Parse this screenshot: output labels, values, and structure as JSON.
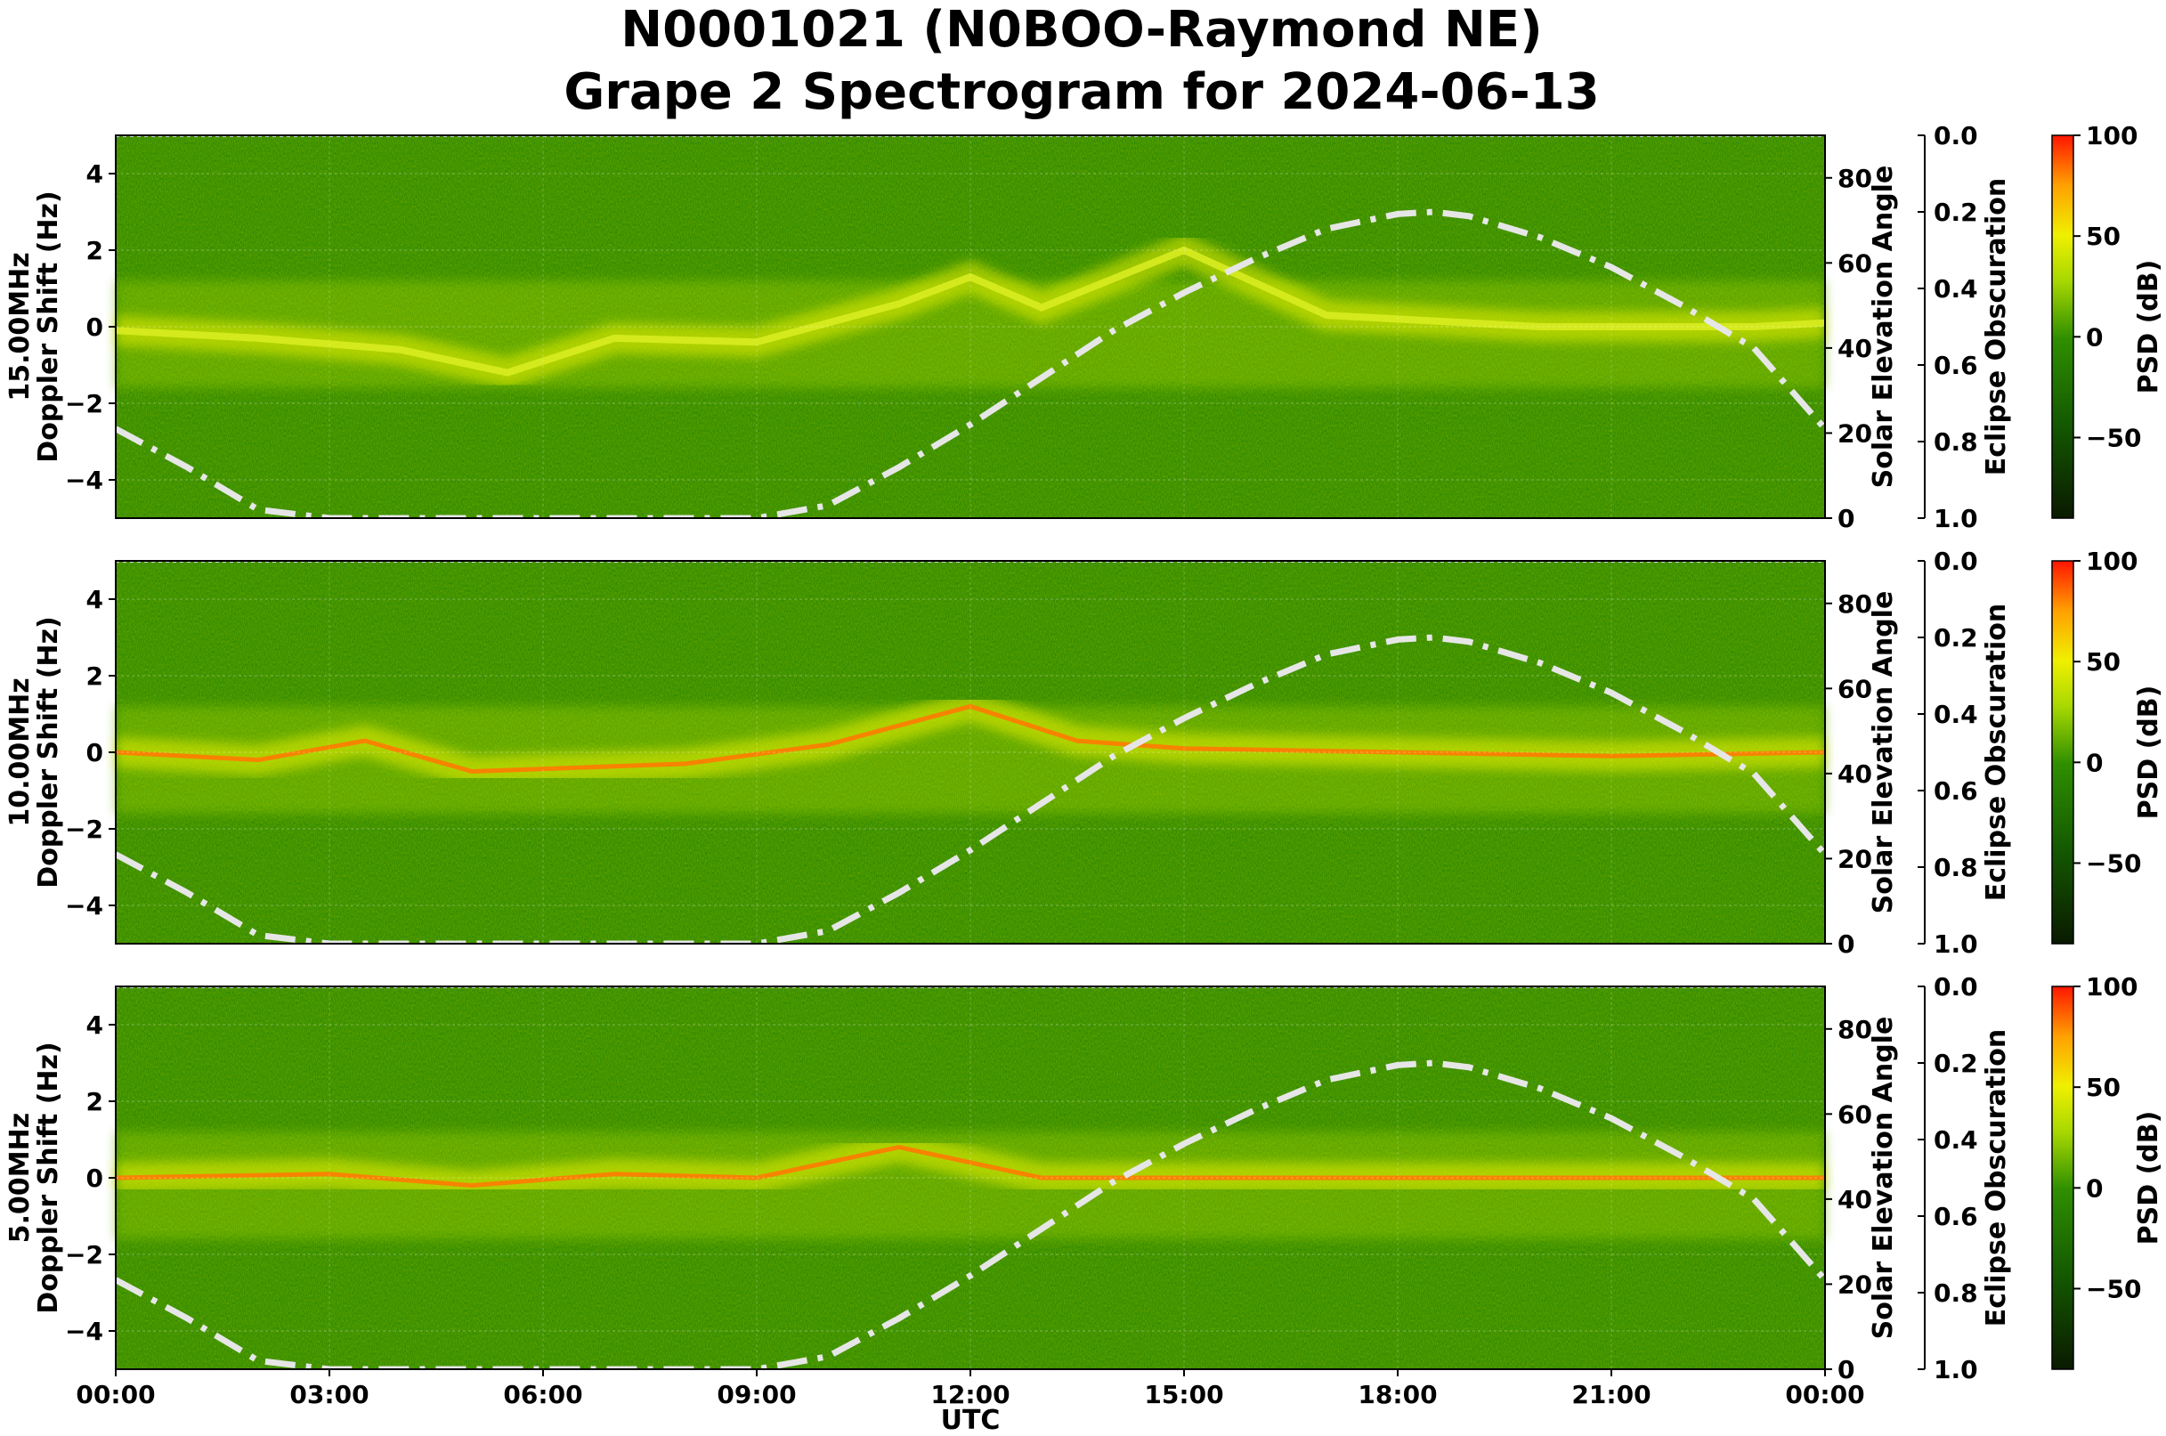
{
  "title_line1": "N0001021 (N0BOO-Raymond NE)",
  "title_line2": "Grape 2 Spectrogram for 2024-06-13",
  "chart_data": {
    "type": "heatmap",
    "xlabel": "UTC",
    "xticks": [
      "00:00",
      "03:00",
      "06:00",
      "09:00",
      "12:00",
      "15:00",
      "18:00",
      "21:00",
      "00:00"
    ],
    "xlim_hours": [
      0,
      24
    ],
    "ylabel": "Doppler Shift (Hz)",
    "ylim": [
      -5,
      5
    ],
    "yticks": [
      4,
      2,
      0,
      -2,
      -4
    ],
    "right_axis_label": "Solar Elevation Angle",
    "right_ylim": [
      0,
      90
    ],
    "right_yticks": [
      80,
      60,
      40,
      20,
      0
    ],
    "eclipse_axis_label": "Eclipse Obscuration",
    "eclipse_ylim": [
      0.0,
      1.0
    ],
    "eclipse_ticks": [
      "0.0",
      "0.2",
      "0.4",
      "0.6",
      "0.8",
      "1.0"
    ],
    "colorbar_label": "PSD (dB)",
    "colorbar_range": [
      -90,
      100
    ],
    "colorbar_ticks": [
      "100",
      "50",
      "0",
      "−50"
    ],
    "colors": {
      "low": "#0a1a00",
      "green": "#1f7a00",
      "mid": "#3c9a00",
      "yellow": "#e8e800",
      "orange": "#ff9a00",
      "red": "#ff1a00"
    },
    "solar_elevation_curve": {
      "hours": [
        0,
        1,
        2,
        3,
        9,
        10,
        11,
        12,
        13,
        14,
        15,
        16,
        17,
        18,
        18.5,
        19,
        20,
        21,
        22,
        23,
        24
      ],
      "degrees": [
        21,
        12,
        2,
        0,
        0,
        3,
        12,
        22,
        33,
        44,
        53,
        61,
        68,
        71.5,
        72,
        71,
        66,
        59,
        50,
        40,
        21
      ]
    },
    "panels": [
      {
        "name": "15.00MHz",
        "ylabel_freq": "15.00MHz",
        "doppler_trace_hours": [
          0,
          2,
          4,
          5.5,
          7,
          9,
          11,
          12,
          13,
          15,
          17,
          20,
          23,
          24
        ],
        "doppler_trace_hz": [
          -0.1,
          -0.3,
          -0.6,
          -1.2,
          -0.3,
          -0.4,
          0.6,
          1.3,
          0.5,
          2.0,
          0.3,
          0.0,
          0.0,
          0.1
        ]
      },
      {
        "name": "10.00MHz",
        "ylabel_freq": "10.00MHz",
        "doppler_trace_hours": [
          0,
          2,
          3.5,
          5,
          8,
          10,
          12,
          13.5,
          15,
          18,
          21,
          24
        ],
        "doppler_trace_hz": [
          0.0,
          -0.2,
          0.3,
          -0.5,
          -0.3,
          0.2,
          1.2,
          0.3,
          0.1,
          0.0,
          -0.1,
          0.0
        ]
      },
      {
        "name": "5.00MHz",
        "ylabel_freq": "5.00MHz",
        "doppler_trace_hours": [
          0,
          3,
          5,
          7,
          9,
          11,
          12,
          13,
          16,
          20,
          24
        ],
        "doppler_trace_hz": [
          0.0,
          0.1,
          -0.2,
          0.1,
          0.0,
          0.8,
          0.4,
          0.0,
          0.0,
          0.0,
          0.0
        ]
      }
    ]
  }
}
